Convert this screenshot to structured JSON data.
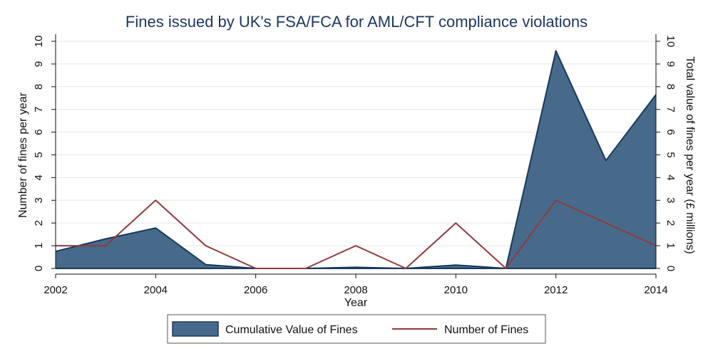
{
  "chart_data": {
    "type": "area+line",
    "title": "Fines issued by UK's FSA/FCA for AML/CFT compliance violations",
    "xlabel": "Year",
    "ylabel_left": "Number of fines per year",
    "ylabel_right": "Total value of fines per year  (£ millions)",
    "x": [
      2002,
      2003,
      2004,
      2005,
      2006,
      2007,
      2008,
      2009,
      2010,
      2011,
      2012,
      2013,
      2014
    ],
    "x_ticks": [
      2002,
      2004,
      2006,
      2008,
      2010,
      2012,
      2014
    ],
    "xlim": [
      2002,
      2014
    ],
    "y_ticks": [
      0,
      1,
      2,
      3,
      4,
      5,
      6,
      7,
      8,
      9,
      10
    ],
    "ylim": [
      0,
      10
    ],
    "grid": true,
    "legend_position": "bottom",
    "series": [
      {
        "name": "Cumulative Value of Fines",
        "kind": "area",
        "axis": "right",
        "color": "#476a8a",
        "edge_color": "#1a3a5c",
        "values": [
          0.75,
          1.3,
          1.78,
          0.17,
          0.0,
          0.0,
          0.05,
          0.0,
          0.15,
          0.0,
          9.58,
          4.75,
          7.65
        ]
      },
      {
        "name": "Number of Fines",
        "kind": "line",
        "axis": "left",
        "color": "#903a3e",
        "values": [
          1,
          1,
          3,
          1,
          0,
          0,
          1,
          0,
          2,
          0,
          3,
          2,
          1
        ]
      }
    ]
  }
}
